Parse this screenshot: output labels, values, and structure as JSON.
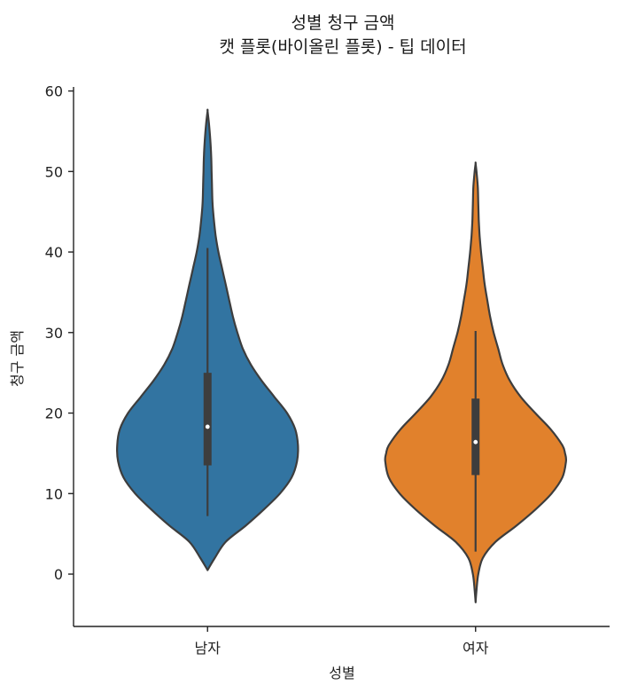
{
  "chart_data": {
    "type": "violin",
    "title": "성별 청구 금액",
    "subtitle": "캣 플롯(바이올린 플롯) - 팁 데이터",
    "xlabel": "성별",
    "ylabel": "청구 금액",
    "categories": [
      "남자",
      "여자"
    ],
    "ylim": [
      -6.5,
      60.5
    ],
    "yticks": [
      0,
      10,
      20,
      30,
      40,
      50,
      60
    ],
    "grid": false,
    "colors": [
      "#3274a1",
      "#e1812c"
    ],
    "series": [
      {
        "category": "남자",
        "color": "#3274a1",
        "range": [
          0.5,
          57.5
        ],
        "q1": 13.5,
        "median": 18.3,
        "q3": 25.0,
        "whisker_low": 7.2,
        "whisker_high": 40.5,
        "density": [
          [
            0.5,
            0.0
          ],
          [
            2,
            0.08
          ],
          [
            4,
            0.2
          ],
          [
            6,
            0.42
          ],
          [
            8,
            0.62
          ],
          [
            10,
            0.8
          ],
          [
            12,
            0.93
          ],
          [
            14,
            0.99
          ],
          [
            16,
            1.0
          ],
          [
            18,
            0.97
          ],
          [
            20,
            0.88
          ],
          [
            22,
            0.74
          ],
          [
            24,
            0.6
          ],
          [
            26,
            0.48
          ],
          [
            28,
            0.39
          ],
          [
            30,
            0.33
          ],
          [
            32,
            0.28
          ],
          [
            34,
            0.24
          ],
          [
            36,
            0.2
          ],
          [
            38,
            0.16
          ],
          [
            40,
            0.12
          ],
          [
            42,
            0.09
          ],
          [
            44,
            0.07
          ],
          [
            46,
            0.055
          ],
          [
            48,
            0.05
          ],
          [
            50,
            0.045
          ],
          [
            52,
            0.04
          ],
          [
            54,
            0.03
          ],
          [
            56,
            0.015
          ],
          [
            57.5,
            0.0
          ]
        ]
      },
      {
        "category": "여자",
        "color": "#e1812c",
        "range": [
          -3.5,
          51.0
        ],
        "q1": 12.3,
        "median": 16.4,
        "q3": 21.8,
        "whisker_low": 2.8,
        "whisker_high": 30.2,
        "density": [
          [
            -3.5,
            0.0
          ],
          [
            -2,
            0.01
          ],
          [
            0,
            0.03
          ],
          [
            2,
            0.08
          ],
          [
            4,
            0.22
          ],
          [
            6,
            0.45
          ],
          [
            8,
            0.66
          ],
          [
            10,
            0.84
          ],
          [
            12,
            0.96
          ],
          [
            14,
            1.0
          ],
          [
            15,
            0.99
          ],
          [
            16,
            0.96
          ],
          [
            18,
            0.83
          ],
          [
            20,
            0.66
          ],
          [
            22,
            0.5
          ],
          [
            24,
            0.38
          ],
          [
            26,
            0.3
          ],
          [
            28,
            0.25
          ],
          [
            30,
            0.2
          ],
          [
            32,
            0.16
          ],
          [
            34,
            0.13
          ],
          [
            36,
            0.1
          ],
          [
            38,
            0.08
          ],
          [
            40,
            0.06
          ],
          [
            42,
            0.045
          ],
          [
            44,
            0.035
          ],
          [
            46,
            0.03
          ],
          [
            48,
            0.025
          ],
          [
            50,
            0.01
          ],
          [
            51.0,
            0.0
          ]
        ]
      }
    ]
  }
}
